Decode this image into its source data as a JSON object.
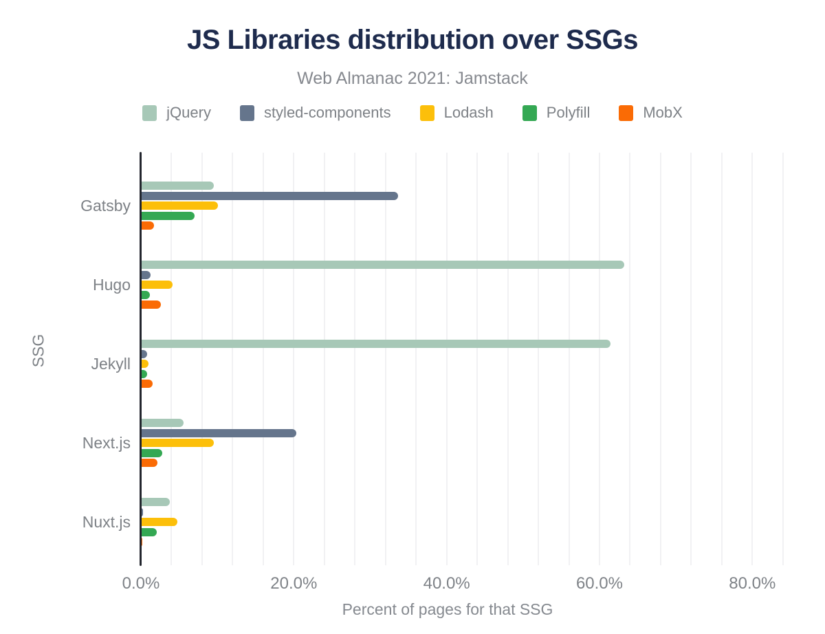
{
  "header": {
    "title": "JS Libraries distribution over SSGs",
    "subtitle": "Web Almanac 2021: Jamstack"
  },
  "colors": {
    "title_navy": "#1e2b4d",
    "axis_line": "#23262e",
    "label_gray": "#7d8186",
    "gridline": "#f1f1f3"
  },
  "chart_data": {
    "type": "bar",
    "orientation": "horizontal",
    "title": "JS Libraries distribution over SSGs",
    "subtitle": "Web Almanac 2021: Jamstack",
    "xlabel": "Percent of pages for that SSG",
    "ylabel": "SSG",
    "categories": [
      "Gatsby",
      "Hugo",
      "Jekyll",
      "Next.js",
      "Nuxt.js"
    ],
    "series": [
      {
        "name": "jQuery",
        "color": "#a7c8b7",
        "values": [
          9.5,
          63.2,
          61.4,
          5.6,
          3.8
        ]
      },
      {
        "name": "styled-components",
        "color": "#65758c",
        "values": [
          33.6,
          1.3,
          0.8,
          20.3,
          0.3
        ]
      },
      {
        "name": "Lodash",
        "color": "#fcbf0a",
        "values": [
          10.1,
          4.1,
          1.0,
          9.5,
          4.8
        ]
      },
      {
        "name": "Polyfill",
        "color": "#34a853",
        "values": [
          7.0,
          1.2,
          0.8,
          2.8,
          2.1
        ]
      },
      {
        "name": "MobX",
        "color": "#fa6b05",
        "values": [
          1.7,
          2.6,
          1.5,
          2.2,
          0.2
        ]
      }
    ],
    "x_ticks": [
      "0.0%",
      "20.0%",
      "40.0%",
      "60.0%",
      "80.0%"
    ],
    "x_tick_values": [
      0,
      20,
      40,
      60,
      80
    ],
    "xlim": [
      0,
      86
    ],
    "grid_interval": 4,
    "grid": true,
    "legend_position": "top"
  }
}
